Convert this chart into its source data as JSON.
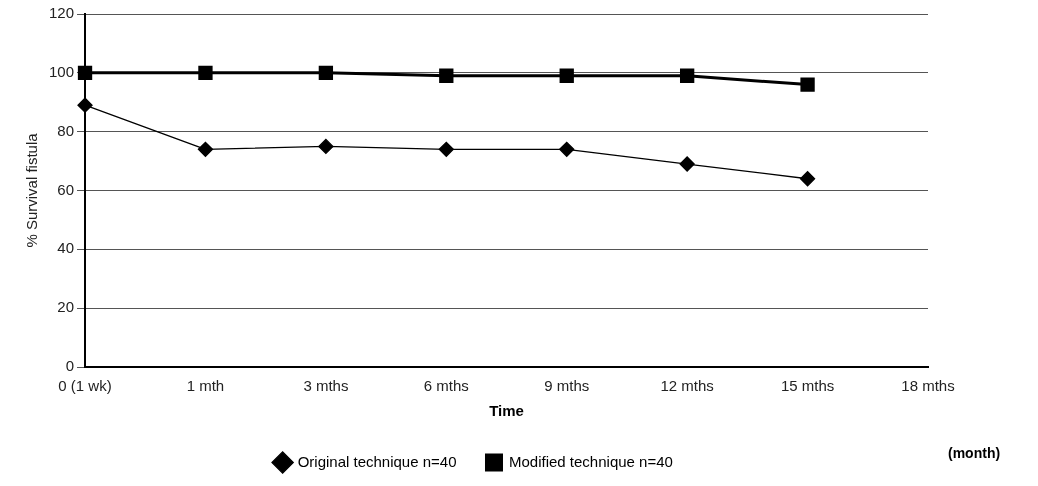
{
  "chart_data": {
    "type": "line",
    "xlabel": "Time",
    "ylabel": "% Survival fistula",
    "categories": [
      "0 (1 wk)",
      "1 mth",
      "3 mths",
      "6 mths",
      "9 mths",
      "12 mths",
      "15 mths",
      "18 mths"
    ],
    "series": [
      {
        "name": "Original technique n=40",
        "color": "#000000",
        "marker": "diamond",
        "values": [
          89,
          74,
          75,
          74,
          74,
          69,
          64,
          null
        ]
      },
      {
        "name": "Modified technique n=40",
        "color": "#000000",
        "marker": "square",
        "values": [
          100,
          100,
          100,
          99,
          99,
          99,
          96,
          null
        ]
      }
    ],
    "ylim": [
      0,
      120
    ],
    "yticks": [
      0,
      20,
      40,
      60,
      80,
      100,
      120
    ],
    "grid": "y",
    "legend": "bottom",
    "line_style": "solid",
    "annotations": [
      "(month)"
    ]
  }
}
